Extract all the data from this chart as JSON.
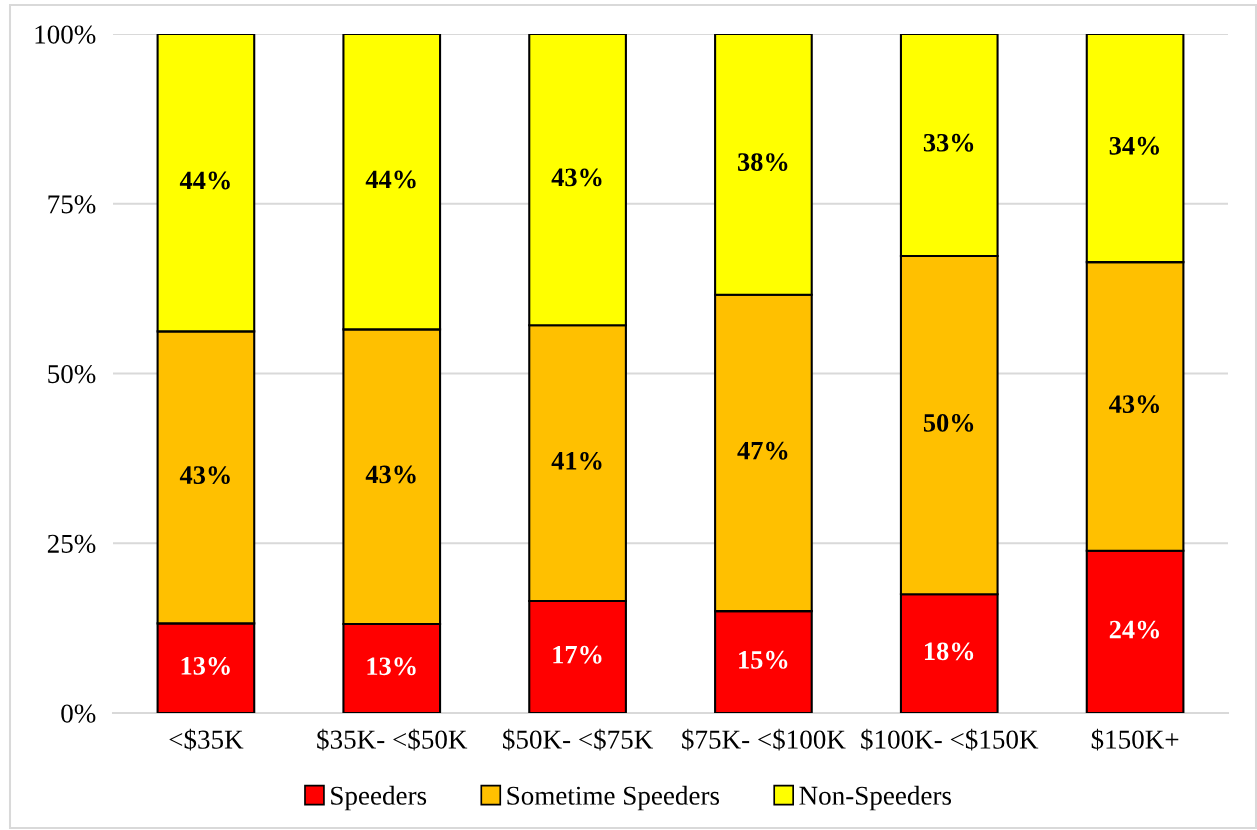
{
  "chart_data": {
    "type": "bar",
    "stacked": true,
    "categories": [
      "<$35K",
      "$35K- <$50K",
      "$50K- <$75K",
      "$75K- <$100K",
      "$100K- <$150K",
      "$150K+"
    ],
    "series": [
      {
        "name": "Speeders",
        "color": "#ff0000",
        "values": [
          13.2,
          13.1,
          16.5,
          15.0,
          17.5,
          23.9
        ],
        "value_labels": [
          "13%",
          "13%",
          "17%",
          "15%",
          "18%",
          "24%"
        ]
      },
      {
        "name": "Sometime Speeders",
        "color": "#ffc000",
        "values": [
          43.0,
          43.4,
          40.6,
          46.6,
          49.8,
          42.5
        ],
        "value_labels": [
          "43%",
          "43%",
          "41%",
          "47%",
          "50%",
          "43%"
        ]
      },
      {
        "name": "Non-Speeders",
        "color": "#ffff00",
        "values": [
          43.8,
          43.5,
          42.9,
          38.4,
          32.7,
          33.6
        ],
        "value_labels": [
          "44%",
          "44%",
          "43%",
          "38%",
          "33%",
          "34%"
        ]
      }
    ],
    "ylim": [
      0,
      100
    ],
    "yticks": [
      {
        "value": 0,
        "label": "0%"
      },
      {
        "value": 25,
        "label": "25%"
      },
      {
        "value": 50,
        "label": "50%"
      },
      {
        "value": 75,
        "label": "75%"
      },
      {
        "value": 100,
        "label": "100%"
      }
    ],
    "grid": "y",
    "legend": "bottom"
  }
}
